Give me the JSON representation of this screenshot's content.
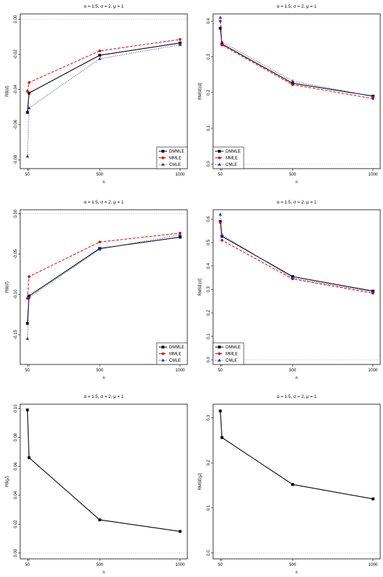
{
  "colors": {
    "DMMLE": "#000000",
    "MMLE": "#dd0000",
    "CMLE": "#2233cc",
    "zero_line": "#bbbbbb"
  },
  "chart_data": [
    {
      "type": "line",
      "title": "α = 1.5, σ = 2, μ = 1",
      "xlabel": "n",
      "ylabel": "RB(α̂)",
      "x": [
        50,
        60,
        500,
        1000
      ],
      "xticks": [
        "50",
        "500",
        "1000"
      ],
      "ylim": [
        -0.085,
        0.003
      ],
      "yticks": [
        0,
        -0.02,
        -0.04,
        -0.06,
        -0.08
      ],
      "ytick_labels": [
        "0.00",
        "-0.02",
        "-0.04",
        "-0.06",
        "-0.08"
      ],
      "zero_line": true,
      "legend": "bottom-right",
      "series": [
        {
          "name": "DMMLE",
          "style": "solid",
          "marker": "square",
          "values": [
            -0.053,
            -0.042,
            -0.0205,
            -0.0135
          ]
        },
        {
          "name": "MMLE",
          "style": "dashed",
          "marker": "dot",
          "values": [
            -0.041,
            -0.036,
            -0.018,
            -0.0115
          ]
        },
        {
          "name": "CMLE",
          "style": "dotted",
          "marker": "triangle",
          "values": [
            -0.078,
            -0.0505,
            -0.0225,
            -0.0145
          ]
        }
      ]
    },
    {
      "type": "line",
      "title": "α = 1.5, σ = 2, μ = 1",
      "xlabel": "n",
      "ylabel": "RMSE(α̂)",
      "x": [
        50,
        60,
        500,
        1000
      ],
      "xticks": [
        "50",
        "500",
        "1000"
      ],
      "ylim": [
        -0.013,
        0.42
      ],
      "yticks": [
        0,
        0.1,
        0.2,
        0.3,
        0.4
      ],
      "ytick_labels": [
        "0.0",
        "0.1",
        "0.2",
        "0.3",
        "0.4"
      ],
      "zero_line": true,
      "legend": "bottom-left",
      "series": [
        {
          "name": "DMMLE",
          "style": "solid",
          "marker": "square",
          "values": [
            0.38,
            0.336,
            0.226,
            0.19
          ]
        },
        {
          "name": "MMLE",
          "style": "dashed",
          "marker": "dot",
          "values": [
            0.4,
            0.333,
            0.222,
            0.183
          ]
        },
        {
          "name": "CMLE",
          "style": "dotted",
          "marker": "triangle",
          "values": [
            0.41,
            0.342,
            0.232,
            0.189
          ]
        }
      ]
    },
    {
      "type": "line",
      "title": "α = 1.5, σ = 2, μ = 1",
      "xlabel": "n",
      "ylabel": "RB(σ̂)",
      "x": [
        50,
        60,
        500,
        1000
      ],
      "xticks": [
        "50",
        "500",
        "1000"
      ],
      "ylim": [
        -0.187,
        0.005
      ],
      "yticks": [
        0,
        -0.05,
        -0.1,
        -0.15
      ],
      "ytick_labels": [
        "0.00",
        "-0.05",
        "-0.10",
        "-0.15"
      ],
      "zero_line": true,
      "legend": "bottom-right",
      "series": [
        {
          "name": "DMMLE",
          "style": "solid",
          "marker": "square",
          "values": [
            -0.136,
            -0.102,
            -0.043,
            -0.029
          ]
        },
        {
          "name": "MMLE",
          "style": "dashed",
          "marker": "dot",
          "values": [
            -0.105,
            -0.078,
            -0.035,
            -0.024
          ]
        },
        {
          "name": "CMLE",
          "style": "dotted",
          "marker": "triangle",
          "values": [
            -0.155,
            -0.104,
            -0.044,
            -0.026
          ]
        }
      ]
    },
    {
      "type": "line",
      "title": "α = 1.5, σ = 2, μ = 1",
      "xlabel": "n",
      "ylabel": "RMSE(σ̂)",
      "x": [
        50,
        60,
        500,
        1000
      ],
      "xticks": [
        "50",
        "500",
        "1000"
      ],
      "ylim": [
        -0.02,
        0.64
      ],
      "yticks": [
        0,
        0.1,
        0.2,
        0.3,
        0.4,
        0.5,
        0.6
      ],
      "ytick_labels": [
        "0.0",
        "0.1",
        "0.2",
        "0.3",
        "0.4",
        "0.5",
        "0.6"
      ],
      "zero_line": true,
      "legend": "bottom-left",
      "series": [
        {
          "name": "DMMLE",
          "style": "solid",
          "marker": "square",
          "values": [
            0.59,
            0.527,
            0.355,
            0.293
          ]
        },
        {
          "name": "MMLE",
          "style": "dashed",
          "marker": "dot",
          "values": [
            0.585,
            0.51,
            0.345,
            0.284
          ]
        },
        {
          "name": "CMLE",
          "style": "dotted",
          "marker": "triangle",
          "values": [
            0.62,
            0.534,
            0.349,
            0.289
          ]
        }
      ]
    },
    {
      "type": "line",
      "title": "α = 1.5, σ = 2, μ = 1",
      "xlabel": "n",
      "ylabel": "RB(μ̂)",
      "x": [
        50,
        60,
        500,
        1000
      ],
      "xticks": [
        "50",
        "500",
        "1000"
      ],
      "ylim": [
        -0.004,
        0.103
      ],
      "yticks": [
        0,
        0.02,
        0.04,
        0.06,
        0.08,
        0.1
      ],
      "ytick_labels": [
        "0.00",
        "0.02",
        "0.04",
        "0.06",
        "0.08",
        "0.10"
      ],
      "zero_line": true,
      "legend": "none",
      "series": [
        {
          "style": "solid",
          "marker": "square",
          "values": [
            0.099,
            0.066,
            0.023,
            0.015
          ]
        }
      ]
    },
    {
      "type": "line",
      "title": "α = 1.5, σ = 2, μ = 1",
      "xlabel": "n",
      "ylabel": "RMSE(μ̂)",
      "x": [
        50,
        60,
        500,
        1000
      ],
      "xticks": [
        "50",
        "500",
        "1000"
      ],
      "ylim": [
        -0.013,
        0.33
      ],
      "yticks": [
        0,
        0.1,
        0.2,
        0.3
      ],
      "ytick_labels": [
        "0.0",
        "0.1",
        "0.2",
        "0.3"
      ],
      "zero_line": true,
      "legend": "none",
      "series": [
        {
          "style": "solid",
          "marker": "square",
          "values": [
            0.315,
            0.256,
            0.152,
            0.12
          ]
        }
      ]
    }
  ]
}
